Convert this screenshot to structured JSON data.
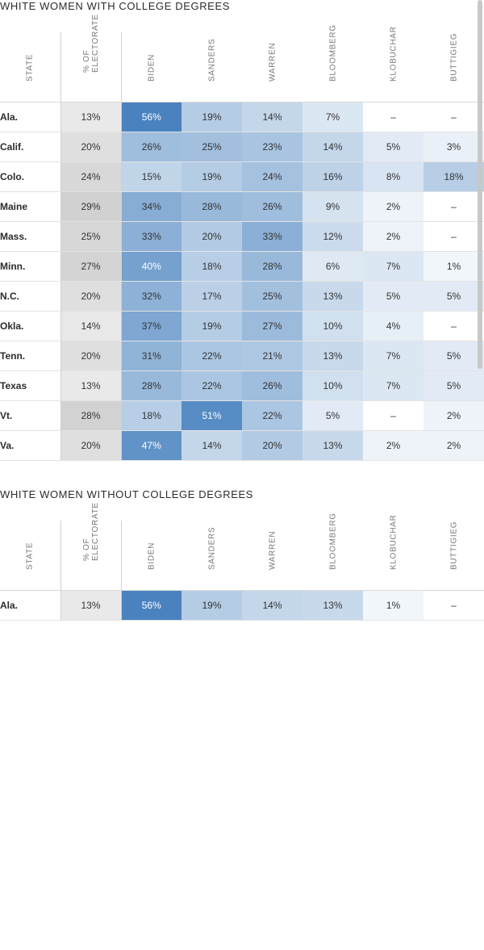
{
  "columns": [
    "STATE",
    "% OF ELECTORATE",
    "BIDEN",
    "SANDERS",
    "WARREN",
    "BLOOMBERG",
    "KLOBUCHAR",
    "BUTTIGIEG"
  ],
  "sections": [
    {
      "title": "WHITE WOMEN WITH COLLEGE DEGREES",
      "rows": [
        {
          "state": "Ala.",
          "cells": [
            "13%",
            "56%",
            "19%",
            "14%",
            "7%",
            "–",
            "–"
          ]
        },
        {
          "state": "Calif.",
          "cells": [
            "20%",
            "26%",
            "25%",
            "23%",
            "14%",
            "5%",
            "3%"
          ]
        },
        {
          "state": "Colo.",
          "cells": [
            "24%",
            "15%",
            "19%",
            "24%",
            "16%",
            "8%",
            "18%"
          ]
        },
        {
          "state": "Maine",
          "cells": [
            "29%",
            "34%",
            "28%",
            "26%",
            "9%",
            "2%",
            "–"
          ]
        },
        {
          "state": "Mass.",
          "cells": [
            "25%",
            "33%",
            "20%",
            "33%",
            "12%",
            "2%",
            "–"
          ]
        },
        {
          "state": "Minn.",
          "cells": [
            "27%",
            "40%",
            "18%",
            "28%",
            "6%",
            "7%",
            "1%"
          ]
        },
        {
          "state": "N.C.",
          "cells": [
            "20%",
            "32%",
            "17%",
            "25%",
            "13%",
            "5%",
            "5%"
          ]
        },
        {
          "state": "Okla.",
          "cells": [
            "14%",
            "37%",
            "19%",
            "27%",
            "10%",
            "4%",
            "–"
          ]
        },
        {
          "state": "Tenn.",
          "cells": [
            "20%",
            "31%",
            "22%",
            "21%",
            "13%",
            "7%",
            "5%"
          ]
        },
        {
          "state": "Texas",
          "cells": [
            "13%",
            "28%",
            "22%",
            "26%",
            "10%",
            "7%",
            "5%"
          ]
        },
        {
          "state": "Vt.",
          "cells": [
            "28%",
            "18%",
            "51%",
            "22%",
            "5%",
            "–",
            "2%"
          ]
        },
        {
          "state": "Va.",
          "cells": [
            "20%",
            "47%",
            "14%",
            "20%",
            "13%",
            "2%",
            "2%"
          ]
        }
      ]
    },
    {
      "title": "WHITE WOMEN WITHOUT COLLEGE DEGREES",
      "rows": [
        {
          "state": "Ala.",
          "cells": [
            "13%",
            "56%",
            "19%",
            "14%",
            "13%",
            "1%",
            "–"
          ]
        }
      ]
    }
  ]
}
